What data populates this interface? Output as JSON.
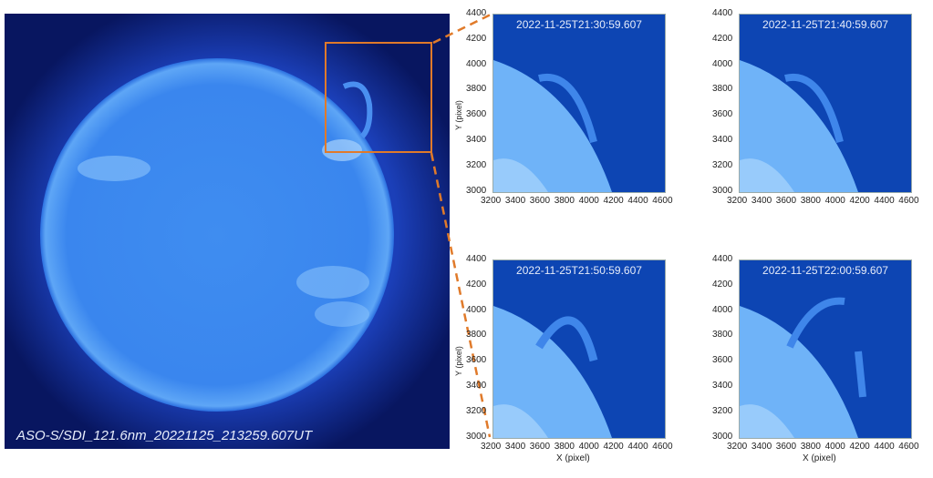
{
  "main_image": {
    "caption": "ASO-S/SDI_121.6nm_20221125_213259.607UT",
    "zoom_box_color": "#e07a2a"
  },
  "panels": [
    {
      "timestamp": "2022-11-25T21:30:59.607",
      "ylabel": "Y (pixel)",
      "xlabel": ""
    },
    {
      "timestamp": "2022-11-25T21:40:59.607",
      "ylabel": "",
      "xlabel": ""
    },
    {
      "timestamp": "2022-11-25T21:50:59.607",
      "ylabel": "Y (pixel)",
      "xlabel": "X (pixel)"
    },
    {
      "timestamp": "2022-11-25T22:00:59.607",
      "ylabel": "",
      "xlabel": "X (pixel)"
    }
  ],
  "x_ticks": [
    "3200",
    "3400",
    "3600",
    "3800",
    "4000",
    "4200",
    "4400",
    "4600"
  ],
  "y_ticks": [
    "4400",
    "4200",
    "4000",
    "3800",
    "3600",
    "3400",
    "3200",
    "3000"
  ]
}
